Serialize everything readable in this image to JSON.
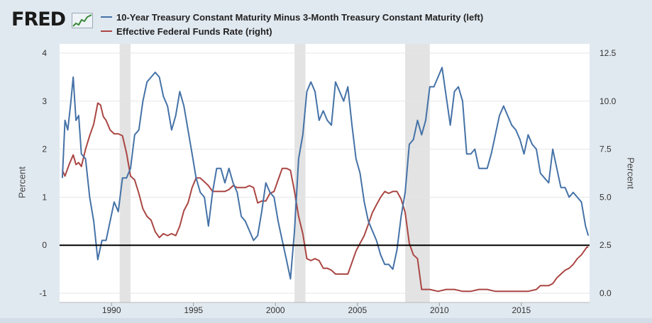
{
  "header": {
    "logo_text": "FRED",
    "logo_icon": "chart-line-icon"
  },
  "colors": {
    "series1": "#4572a7",
    "series2": "#aa4643",
    "recession": "#e3e3e3",
    "zero_line": "#000000",
    "plot_bg": "#ffffff",
    "page_bg": "#e1e9f0"
  },
  "chart_data": {
    "type": "line",
    "x_type": "date",
    "xlim": [
      "1986-11-01",
      "2019-03-01"
    ],
    "x_ticks": [
      "1990",
      "1995",
      "2000",
      "2005",
      "2010",
      "2015"
    ],
    "x_tick_dates": [
      "1990-01-01",
      "1995-01-01",
      "2000-01-01",
      "2005-01-01",
      "2010-01-01",
      "2015-01-01"
    ],
    "ylim_left": [
      -1,
      4
    ],
    "yticks_left": [
      "4",
      "3",
      "2",
      "1",
      "0",
      "-1"
    ],
    "ylim_right": [
      0.0,
      12.5
    ],
    "yticks_right": [
      "12.5",
      "10.0",
      "7.5",
      "5.0",
      "2.5",
      "0.0"
    ],
    "ylabel_left": "Percent",
    "ylabel_right": "Percent",
    "reference_line_left": 0,
    "grid": "horizontal",
    "legend_position": "top",
    "recessions": [
      [
        "1990-07-01",
        "1991-03-01"
      ],
      [
        "2001-03-01",
        "2001-11-01"
      ],
      [
        "2007-12-01",
        "2009-06-01"
      ]
    ],
    "series": [
      {
        "name": "10-Year Treasury Constant Maturity Minus 3-Month Treasury Constant Maturity (left)",
        "axis": "left",
        "points": [
          [
            "1987-01-01",
            1.4
          ],
          [
            "1987-03-01",
            2.6
          ],
          [
            "1987-05-01",
            2.4
          ],
          [
            "1987-07-01",
            2.9
          ],
          [
            "1987-09-01",
            3.5
          ],
          [
            "1987-11-01",
            2.6
          ],
          [
            "1988-01-01",
            2.7
          ],
          [
            "1988-03-01",
            1.9
          ],
          [
            "1988-06-01",
            1.8
          ],
          [
            "1988-09-01",
            1.0
          ],
          [
            "1988-12-01",
            0.5
          ],
          [
            "1989-03-01",
            -0.3
          ],
          [
            "1989-06-01",
            0.1
          ],
          [
            "1989-09-01",
            0.1
          ],
          [
            "1989-12-01",
            0.5
          ],
          [
            "1990-03-01",
            0.9
          ],
          [
            "1990-06-01",
            0.7
          ],
          [
            "1990-09-01",
            1.4
          ],
          [
            "1990-12-01",
            1.4
          ],
          [
            "1991-03-01",
            1.6
          ],
          [
            "1991-06-01",
            2.3
          ],
          [
            "1991-09-01",
            2.4
          ],
          [
            "1991-12-01",
            3.0
          ],
          [
            "1992-03-01",
            3.4
          ],
          [
            "1992-06-01",
            3.5
          ],
          [
            "1992-09-01",
            3.6
          ],
          [
            "1992-12-01",
            3.5
          ],
          [
            "1993-03-01",
            3.1
          ],
          [
            "1993-06-01",
            2.9
          ],
          [
            "1993-09-01",
            2.4
          ],
          [
            "1993-12-01",
            2.7
          ],
          [
            "1994-03-01",
            3.2
          ],
          [
            "1994-06-01",
            2.9
          ],
          [
            "1994-09-01",
            2.4
          ],
          [
            "1994-12-01",
            1.9
          ],
          [
            "1995-03-01",
            1.4
          ],
          [
            "1995-06-01",
            1.1
          ],
          [
            "1995-09-01",
            1.0
          ],
          [
            "1995-12-01",
            0.4
          ],
          [
            "1996-03-01",
            1.1
          ],
          [
            "1996-06-01",
            1.6
          ],
          [
            "1996-09-01",
            1.6
          ],
          [
            "1996-12-01",
            1.3
          ],
          [
            "1997-03-01",
            1.6
          ],
          [
            "1997-06-01",
            1.3
          ],
          [
            "1997-09-01",
            1.1
          ],
          [
            "1997-12-01",
            0.6
          ],
          [
            "1998-03-01",
            0.5
          ],
          [
            "1998-06-01",
            0.3
          ],
          [
            "1998-09-01",
            0.1
          ],
          [
            "1998-12-01",
            0.2
          ],
          [
            "1999-03-01",
            0.7
          ],
          [
            "1999-06-01",
            1.3
          ],
          [
            "1999-09-01",
            1.1
          ],
          [
            "1999-12-01",
            1.0
          ],
          [
            "2000-03-01",
            0.5
          ],
          [
            "2000-06-01",
            0.1
          ],
          [
            "2000-09-01",
            -0.3
          ],
          [
            "2000-12-01",
            -0.7
          ],
          [
            "2001-03-01",
            0.3
          ],
          [
            "2001-06-01",
            1.8
          ],
          [
            "2001-09-01",
            2.3
          ],
          [
            "2001-12-01",
            3.2
          ],
          [
            "2002-03-01",
            3.4
          ],
          [
            "2002-06-01",
            3.2
          ],
          [
            "2002-09-01",
            2.6
          ],
          [
            "2002-12-01",
            2.8
          ],
          [
            "2003-03-01",
            2.6
          ],
          [
            "2003-06-01",
            2.5
          ],
          [
            "2003-09-01",
            3.4
          ],
          [
            "2003-12-01",
            3.2
          ],
          [
            "2004-03-01",
            3.0
          ],
          [
            "2004-06-01",
            3.3
          ],
          [
            "2004-09-01",
            2.5
          ],
          [
            "2004-12-01",
            1.8
          ],
          [
            "2005-03-01",
            1.5
          ],
          [
            "2005-06-01",
            0.9
          ],
          [
            "2005-09-01",
            0.5
          ],
          [
            "2005-12-01",
            0.3
          ],
          [
            "2006-03-01",
            0.1
          ],
          [
            "2006-06-01",
            -0.2
          ],
          [
            "2006-09-01",
            -0.4
          ],
          [
            "2006-12-01",
            -0.4
          ],
          [
            "2007-03-01",
            -0.5
          ],
          [
            "2007-06-01",
            -0.1
          ],
          [
            "2007-09-01",
            0.6
          ],
          [
            "2007-12-01",
            1.1
          ],
          [
            "2008-03-01",
            2.1
          ],
          [
            "2008-06-01",
            2.2
          ],
          [
            "2008-09-01",
            2.6
          ],
          [
            "2008-12-01",
            2.3
          ],
          [
            "2009-03-01",
            2.6
          ],
          [
            "2009-06-01",
            3.3
          ],
          [
            "2009-09-01",
            3.3
          ],
          [
            "2009-12-01",
            3.5
          ],
          [
            "2010-03-01",
            3.7
          ],
          [
            "2010-06-01",
            3.1
          ],
          [
            "2010-09-01",
            2.5
          ],
          [
            "2010-12-01",
            3.2
          ],
          [
            "2011-03-01",
            3.3
          ],
          [
            "2011-06-01",
            3.0
          ],
          [
            "2011-09-01",
            1.9
          ],
          [
            "2011-12-01",
            1.9
          ],
          [
            "2012-03-01",
            2.0
          ],
          [
            "2012-06-01",
            1.6
          ],
          [
            "2012-09-01",
            1.6
          ],
          [
            "2012-12-01",
            1.6
          ],
          [
            "2013-03-01",
            1.9
          ],
          [
            "2013-06-01",
            2.3
          ],
          [
            "2013-09-01",
            2.7
          ],
          [
            "2013-12-01",
            2.9
          ],
          [
            "2014-03-01",
            2.7
          ],
          [
            "2014-06-01",
            2.5
          ],
          [
            "2014-09-01",
            2.4
          ],
          [
            "2014-12-01",
            2.2
          ],
          [
            "2015-03-01",
            1.9
          ],
          [
            "2015-06-01",
            2.3
          ],
          [
            "2015-09-01",
            2.1
          ],
          [
            "2015-12-01",
            2.0
          ],
          [
            "2016-03-01",
            1.5
          ],
          [
            "2016-06-01",
            1.4
          ],
          [
            "2016-09-01",
            1.3
          ],
          [
            "2016-12-01",
            2.0
          ],
          [
            "2017-03-01",
            1.6
          ],
          [
            "2017-06-01",
            1.2
          ],
          [
            "2017-09-01",
            1.2
          ],
          [
            "2017-12-01",
            1.0
          ],
          [
            "2018-03-01",
            1.1
          ],
          [
            "2018-06-01",
            1.0
          ],
          [
            "2018-09-01",
            0.9
          ],
          [
            "2018-12-01",
            0.4
          ],
          [
            "2019-01-01",
            0.3
          ],
          [
            "2019-02-01",
            0.2
          ]
        ]
      },
      {
        "name": "Effective Federal Funds Rate (right)",
        "axis": "right",
        "points": [
          [
            "1987-01-01",
            6.4
          ],
          [
            "1987-03-01",
            6.1
          ],
          [
            "1987-06-01",
            6.7
          ],
          [
            "1987-09-01",
            7.2
          ],
          [
            "1987-11-01",
            6.7
          ],
          [
            "1988-01-01",
            6.8
          ],
          [
            "1988-03-01",
            6.6
          ],
          [
            "1988-06-01",
            7.5
          ],
          [
            "1988-09-01",
            8.2
          ],
          [
            "1988-12-01",
            8.8
          ],
          [
            "1989-03-01",
            9.9
          ],
          [
            "1989-05-01",
            9.8
          ],
          [
            "1989-07-01",
            9.2
          ],
          [
            "1989-09-01",
            9.0
          ],
          [
            "1989-12-01",
            8.5
          ],
          [
            "1990-03-01",
            8.3
          ],
          [
            "1990-06-01",
            8.3
          ],
          [
            "1990-09-01",
            8.2
          ],
          [
            "1990-12-01",
            7.3
          ],
          [
            "1991-03-01",
            6.1
          ],
          [
            "1991-06-01",
            5.9
          ],
          [
            "1991-09-01",
            5.2
          ],
          [
            "1991-12-01",
            4.4
          ],
          [
            "1992-03-01",
            4.0
          ],
          [
            "1992-06-01",
            3.8
          ],
          [
            "1992-09-01",
            3.2
          ],
          [
            "1992-12-01",
            2.9
          ],
          [
            "1993-03-01",
            3.1
          ],
          [
            "1993-06-01",
            3.0
          ],
          [
            "1993-09-01",
            3.1
          ],
          [
            "1993-12-01",
            3.0
          ],
          [
            "1994-03-01",
            3.5
          ],
          [
            "1994-06-01",
            4.3
          ],
          [
            "1994-09-01",
            4.7
          ],
          [
            "1994-12-01",
            5.5
          ],
          [
            "1995-03-01",
            6.0
          ],
          [
            "1995-06-01",
            6.0
          ],
          [
            "1995-09-01",
            5.8
          ],
          [
            "1995-12-01",
            5.6
          ],
          [
            "1996-03-01",
            5.3
          ],
          [
            "1996-06-01",
            5.3
          ],
          [
            "1996-09-01",
            5.3
          ],
          [
            "1996-12-01",
            5.3
          ],
          [
            "1997-03-01",
            5.4
          ],
          [
            "1997-06-01",
            5.6
          ],
          [
            "1997-09-01",
            5.5
          ],
          [
            "1997-12-01",
            5.5
          ],
          [
            "1998-03-01",
            5.5
          ],
          [
            "1998-06-01",
            5.6
          ],
          [
            "1998-09-01",
            5.5
          ],
          [
            "1998-12-01",
            4.7
          ],
          [
            "1999-03-01",
            4.8
          ],
          [
            "1999-06-01",
            4.8
          ],
          [
            "1999-09-01",
            5.2
          ],
          [
            "1999-12-01",
            5.3
          ],
          [
            "2000-03-01",
            5.9
          ],
          [
            "2000-06-01",
            6.5
          ],
          [
            "2000-09-01",
            6.5
          ],
          [
            "2000-12-01",
            6.4
          ],
          [
            "2001-03-01",
            5.3
          ],
          [
            "2001-06-01",
            4.0
          ],
          [
            "2001-09-01",
            3.1
          ],
          [
            "2001-12-01",
            1.8
          ],
          [
            "2002-03-01",
            1.7
          ],
          [
            "2002-06-01",
            1.8
          ],
          [
            "2002-09-01",
            1.7
          ],
          [
            "2002-12-01",
            1.3
          ],
          [
            "2003-03-01",
            1.3
          ],
          [
            "2003-06-01",
            1.2
          ],
          [
            "2003-09-01",
            1.0
          ],
          [
            "2003-12-01",
            1.0
          ],
          [
            "2004-03-01",
            1.0
          ],
          [
            "2004-06-01",
            1.0
          ],
          [
            "2004-09-01",
            1.6
          ],
          [
            "2004-12-01",
            2.2
          ],
          [
            "2005-03-01",
            2.6
          ],
          [
            "2005-06-01",
            3.0
          ],
          [
            "2005-09-01",
            3.6
          ],
          [
            "2005-12-01",
            4.2
          ],
          [
            "2006-03-01",
            4.6
          ],
          [
            "2006-06-01",
            5.0
          ],
          [
            "2006-09-01",
            5.3
          ],
          [
            "2006-12-01",
            5.2
          ],
          [
            "2007-03-01",
            5.3
          ],
          [
            "2007-06-01",
            5.3
          ],
          [
            "2007-09-01",
            4.9
          ],
          [
            "2007-12-01",
            4.2
          ],
          [
            "2008-03-01",
            2.6
          ],
          [
            "2008-06-01",
            2.0
          ],
          [
            "2008-09-01",
            1.8
          ],
          [
            "2008-12-01",
            0.2
          ],
          [
            "2009-03-01",
            0.2
          ],
          [
            "2009-06-01",
            0.2
          ],
          [
            "2009-12-01",
            0.1
          ],
          [
            "2010-06-01",
            0.2
          ],
          [
            "2010-12-01",
            0.2
          ],
          [
            "2011-06-01",
            0.1
          ],
          [
            "2011-12-01",
            0.1
          ],
          [
            "2012-06-01",
            0.2
          ],
          [
            "2012-12-01",
            0.2
          ],
          [
            "2013-06-01",
            0.1
          ],
          [
            "2013-12-01",
            0.1
          ],
          [
            "2014-06-01",
            0.1
          ],
          [
            "2014-12-01",
            0.1
          ],
          [
            "2015-06-01",
            0.1
          ],
          [
            "2015-12-01",
            0.2
          ],
          [
            "2016-03-01",
            0.4
          ],
          [
            "2016-06-01",
            0.4
          ],
          [
            "2016-09-01",
            0.4
          ],
          [
            "2016-12-01",
            0.5
          ],
          [
            "2017-03-01",
            0.8
          ],
          [
            "2017-06-01",
            1.0
          ],
          [
            "2017-09-01",
            1.2
          ],
          [
            "2017-12-01",
            1.3
          ],
          [
            "2018-03-01",
            1.5
          ],
          [
            "2018-06-01",
            1.8
          ],
          [
            "2018-09-01",
            2.0
          ],
          [
            "2018-12-01",
            2.3
          ],
          [
            "2019-01-01",
            2.4
          ],
          [
            "2019-02-01",
            2.4
          ]
        ]
      }
    ]
  }
}
